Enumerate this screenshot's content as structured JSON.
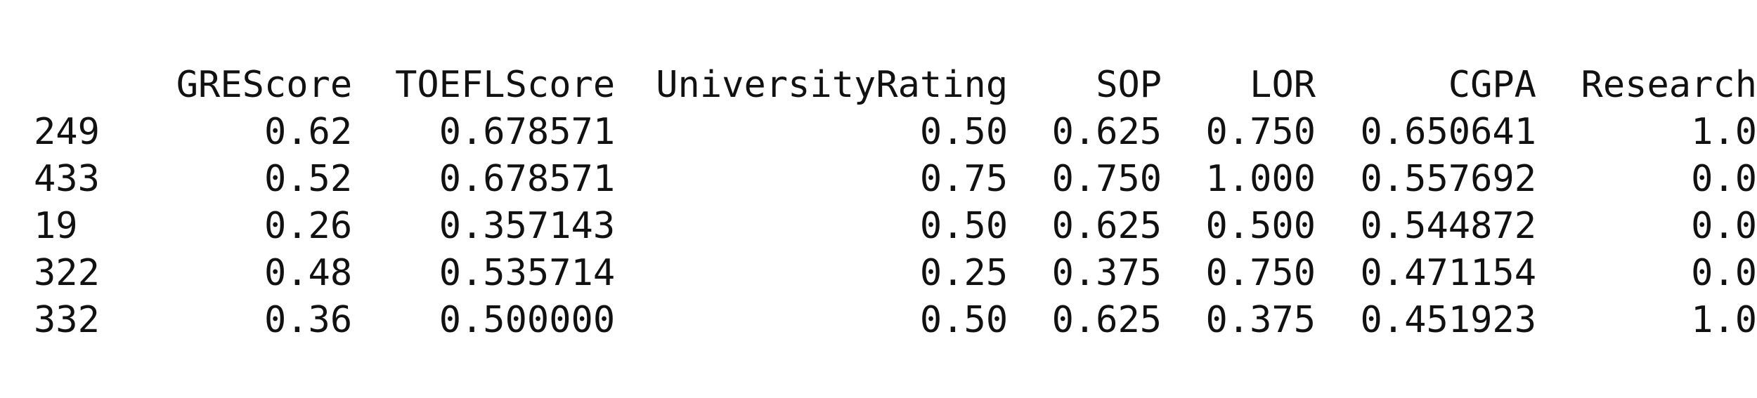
{
  "table": {
    "columns": [
      "GREScore",
      "TOEFLScore",
      "UniversityRating",
      "SOP",
      "LOR",
      "CGPA",
      "Research"
    ],
    "rows": [
      {
        "index": "249",
        "cells": [
          "0.62",
          "0.678571",
          "0.50",
          "0.625",
          "0.750",
          "0.650641",
          "1.0"
        ]
      },
      {
        "index": "433",
        "cells": [
          "0.52",
          "0.678571",
          "0.75",
          "0.750",
          "1.000",
          "0.557692",
          "0.0"
        ]
      },
      {
        "index": "19",
        "cells": [
          "0.26",
          "0.357143",
          "0.50",
          "0.625",
          "0.500",
          "0.544872",
          "0.0"
        ]
      },
      {
        "index": "322",
        "cells": [
          "0.48",
          "0.535714",
          "0.25",
          "0.375",
          "0.750",
          "0.471154",
          "0.0"
        ]
      },
      {
        "index": "332",
        "cells": [
          "0.36",
          "0.500000",
          "0.50",
          "0.625",
          "0.375",
          "0.451923",
          "1.0"
        ]
      }
    ]
  }
}
